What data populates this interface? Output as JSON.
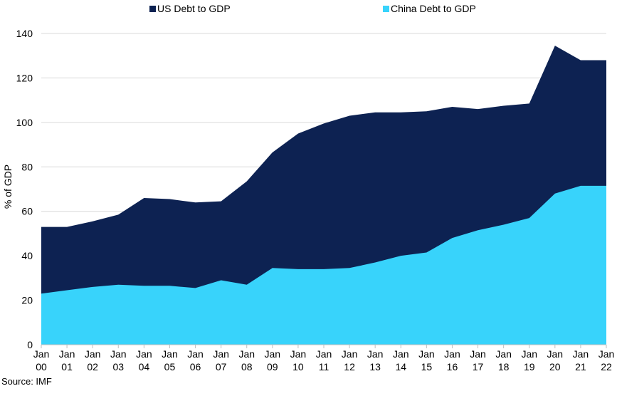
{
  "chart_data": {
    "type": "area",
    "stacked": false,
    "ylabel": "% of GDP",
    "ylim": [
      0,
      140
    ],
    "yticks": [
      0,
      20,
      40,
      60,
      80,
      100,
      120,
      140
    ],
    "grid": true,
    "legend_position": "top",
    "categories": [
      [
        "Jan",
        "00"
      ],
      [
        "Jan",
        "01"
      ],
      [
        "Jan",
        "02"
      ],
      [
        "Jan",
        "03"
      ],
      [
        "Jan",
        "04"
      ],
      [
        "Jan",
        "05"
      ],
      [
        "Jan",
        "06"
      ],
      [
        "Jan",
        "07"
      ],
      [
        "Jan",
        "08"
      ],
      [
        "Jan",
        "09"
      ],
      [
        "Jan",
        "10"
      ],
      [
        "Jan",
        "11"
      ],
      [
        "Jan",
        "12"
      ],
      [
        "Jan",
        "13"
      ],
      [
        "Jan",
        "14"
      ],
      [
        "Jan",
        "15"
      ],
      [
        "Jan",
        "16"
      ],
      [
        "Jan",
        "17"
      ],
      [
        "Jan",
        "18"
      ],
      [
        "Jan",
        "19"
      ],
      [
        "Jan",
        "20"
      ],
      [
        "Jan",
        "21"
      ],
      [
        "Jan",
        "22"
      ]
    ],
    "series": [
      {
        "name": "US Debt to GDP",
        "color": "#0d2252",
        "values": [
          53,
          53,
          55.5,
          58.5,
          66,
          65.5,
          64,
          64.5,
          73.5,
          86.5,
          95,
          99.5,
          103,
          104.5,
          104.5,
          105,
          107,
          106,
          107.5,
          108.5,
          134.5,
          128,
          128
        ]
      },
      {
        "name": "China Debt to GDP",
        "color": "#38d3fb",
        "values": [
          23,
          24.5,
          26,
          27,
          26.5,
          26.5,
          25.5,
          29,
          27,
          34.5,
          34,
          34,
          34.5,
          37,
          40,
          41.5,
          48,
          51.5,
          54,
          57,
          68,
          71.5,
          71.5
        ]
      }
    ]
  },
  "source_note": "Source: IMF"
}
